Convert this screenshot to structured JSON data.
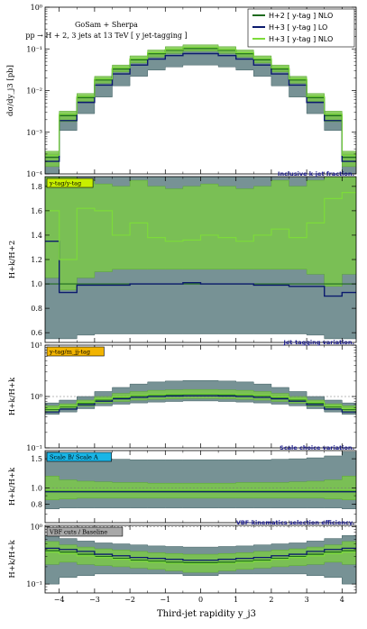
{
  "chart_data": {
    "type": "line",
    "header": [
      "GoSam + Sherpa",
      "pp → H + 2, 3 jets at 13 TeV  [ y jet-tagging ]"
    ],
    "xlabel": "Third-jet rapidity  y_j3",
    "xlim": [
      -4.4,
      4.4
    ],
    "xticks": [
      -4,
      -3,
      -2,
      -1,
      0,
      1,
      2,
      3,
      4
    ],
    "x_edges": [
      -4.4,
      -4.0,
      -3.5,
      -3.0,
      -2.5,
      -2.0,
      -1.5,
      -1.0,
      -0.5,
      0.0,
      0.5,
      1.0,
      1.5,
      2.0,
      2.5,
      3.0,
      3.5,
      4.0,
      4.4
    ],
    "legend": [
      "H+2 [ y-tag ] NLO",
      "H+3 [ y-tag ] LO",
      "H+3 [ y-tag ] NLO"
    ],
    "colors": {
      "dark_green": "#1e6b1e",
      "navy": "#0b1a6e",
      "light_green": "#7ddb3a",
      "band_gray": "#5f7f83",
      "band_green": "#7ac74a",
      "tag_yellow": "#c8f000",
      "tag_orange": "#f2b400",
      "tag_cyan": "#19b5e6",
      "tag_gray": "#a8a8a8"
    },
    "panels": [
      {
        "id": "main",
        "scale": "log",
        "ylim": [
          0.0001,
          1
        ],
        "ylabel": "dσ/dy_j3 [pb]",
        "yticks": [
          {
            "v": 0.0001,
            "l": "10⁻⁴"
          },
          {
            "v": 0.001,
            "l": "10⁻³"
          },
          {
            "v": 0.01,
            "l": "10⁻²"
          },
          {
            "v": 0.1,
            "l": "10⁻¹"
          },
          {
            "v": 1,
            "l": "10⁰"
          }
        ],
        "gray_lo": [
          0.0001,
          0.0011,
          0.0028,
          0.007,
          0.013,
          0.022,
          0.031,
          0.037,
          0.041,
          0.041,
          0.037,
          0.031,
          0.022,
          0.013,
          0.007,
          0.0028,
          0.0011,
          0.0001
        ],
        "gray_hi": [
          0.0003,
          0.0028,
          0.0075,
          0.02,
          0.036,
          0.058,
          0.08,
          0.095,
          0.105,
          0.105,
          0.095,
          0.08,
          0.058,
          0.036,
          0.02,
          0.0075,
          0.0028,
          0.0003
        ],
        "green_lo": [
          0.00015,
          0.0018,
          0.0055,
          0.015,
          0.028,
          0.046,
          0.064,
          0.078,
          0.088,
          0.088,
          0.078,
          0.064,
          0.046,
          0.028,
          0.015,
          0.0055,
          0.0018,
          0.00015
        ],
        "green_hi": [
          0.00035,
          0.0032,
          0.0085,
          0.022,
          0.041,
          0.068,
          0.094,
          0.113,
          0.125,
          0.125,
          0.113,
          0.094,
          0.068,
          0.041,
          0.022,
          0.0085,
          0.0032,
          0.00035
        ],
        "lines": [
          {
            "name": "H+2 NLO",
            "color": "#1e6b1e",
            "w": 1.4,
            "values": [
              0.00025,
              0.0025,
              0.0068,
              0.018,
              0.033,
              0.055,
              0.077,
              0.093,
              0.103,
              0.103,
              0.093,
              0.077,
              0.055,
              0.033,
              0.018,
              0.0068,
              0.0025,
              0.00025
            ]
          },
          {
            "name": "H+3 LO",
            "color": "#0b1a6e",
            "w": 1.4,
            "values": [
              0.0002,
              0.0019,
              0.0052,
              0.0135,
              0.025,
              0.041,
              0.057,
              0.069,
              0.077,
              0.077,
              0.069,
              0.057,
              0.041,
              0.025,
              0.0135,
              0.0052,
              0.0019,
              0.0002
            ]
          },
          {
            "name": "H+3 NLO",
            "color": "#7ddb3a",
            "w": 1.2,
            "values": [
              0.00028,
              0.0027,
              0.0072,
              0.019,
              0.035,
              0.058,
              0.081,
              0.097,
              0.108,
              0.108,
              0.097,
              0.081,
              0.058,
              0.035,
              0.019,
              0.0072,
              0.0027,
              0.00028
            ]
          }
        ]
      },
      {
        "id": "ratio1",
        "scale": "lin",
        "ylim": [
          0.52,
          1.88
        ],
        "ylabel": "H+k/H+2",
        "tag": "y-tag/y-tag",
        "title": "Inclusive k-jet fraction.",
        "yticks": [
          {
            "v": 0.6,
            "l": "0.6"
          },
          {
            "v": 0.8,
            "l": "0.8"
          },
          {
            "v": 1.0,
            "l": "1.0"
          },
          {
            "v": 1.2,
            "l": "1.2"
          },
          {
            "v": 1.4,
            "l": "1.4"
          },
          {
            "v": 1.6,
            "l": "1.6"
          },
          {
            "v": 1.8,
            "l": "1.8"
          }
        ],
        "gray_lo": [
          0.55,
          0.55,
          0.58,
          0.59,
          0.59,
          0.59,
          0.59,
          0.59,
          0.59,
          0.59,
          0.59,
          0.59,
          0.59,
          0.59,
          0.59,
          0.58,
          0.55,
          0.55
        ],
        "gray_hi": [
          1.88,
          1.88,
          1.88,
          1.88,
          1.88,
          1.88,
          1.88,
          1.88,
          1.88,
          1.88,
          1.88,
          1.88,
          1.88,
          1.88,
          1.88,
          1.88,
          1.88,
          1.88
        ],
        "green_lo": [
          1.05,
          0.95,
          1.05,
          1.1,
          1.12,
          1.12,
          1.12,
          1.12,
          1.12,
          1.12,
          1.12,
          1.12,
          1.12,
          1.12,
          1.12,
          1.08,
          0.98,
          1.08
        ],
        "green_hi": [
          1.88,
          1.88,
          1.85,
          1.82,
          1.8,
          1.85,
          1.8,
          1.78,
          1.8,
          1.82,
          1.8,
          1.78,
          1.8,
          1.85,
          1.8,
          1.85,
          1.88,
          1.88
        ],
        "lines": [
          {
            "name": "H+2 NLO",
            "color": "#1e6b1e",
            "w": 1.2,
            "values": [
              1,
              1,
              1,
              1,
              1,
              1,
              1,
              1,
              1,
              1,
              1,
              1,
              1,
              1,
              1,
              1,
              1,
              1
            ]
          },
          {
            "name": "H+3 LO",
            "color": "#0b1a6e",
            "w": 1.4,
            "values": [
              1.35,
              0.93,
              0.99,
              0.99,
              0.99,
              1.0,
              1.0,
              1.0,
              1.01,
              1.0,
              1.0,
              1.0,
              0.99,
              0.99,
              0.98,
              0.98,
              0.9,
              0.93
            ]
          },
          {
            "name": "H+3 NLO",
            "color": "#7ddb3a",
            "w": 1.2,
            "values": [
              1.6,
              1.2,
              1.62,
              1.6,
              1.4,
              1.5,
              1.38,
              1.35,
              1.36,
              1.4,
              1.38,
              1.35,
              1.4,
              1.45,
              1.38,
              1.5,
              1.7,
              1.75
            ]
          }
        ]
      },
      {
        "id": "ratio2",
        "scale": "log",
        "ylim": [
          0.1,
          10
        ],
        "ylabel": "H+k/H+k",
        "tag": "y-tag/m_jj-tag",
        "title": "Jet-tagging variation.",
        "yticks": [
          {
            "v": 0.1,
            "l": "10⁻¹"
          },
          {
            "v": 1,
            "l": "10⁰"
          },
          {
            "v": 10,
            "l": "10¹"
          }
        ],
        "gray_lo": [
          0.45,
          0.5,
          0.58,
          0.66,
          0.71,
          0.75,
          0.78,
          0.8,
          0.82,
          0.82,
          0.8,
          0.78,
          0.75,
          0.71,
          0.66,
          0.58,
          0.5,
          0.45
        ],
        "gray_hi": [
          0.75,
          0.85,
          1.0,
          1.25,
          1.5,
          1.75,
          1.92,
          2.0,
          2.05,
          2.05,
          2.0,
          1.92,
          1.75,
          1.5,
          1.25,
          1.0,
          0.85,
          0.75
        ],
        "green_lo": [
          0.5,
          0.56,
          0.65,
          0.74,
          0.8,
          0.85,
          0.88,
          0.9,
          0.91,
          0.91,
          0.9,
          0.88,
          0.85,
          0.8,
          0.74,
          0.65,
          0.56,
          0.5
        ],
        "green_hi": [
          0.66,
          0.72,
          0.85,
          1.0,
          1.15,
          1.25,
          1.32,
          1.35,
          1.37,
          1.37,
          1.35,
          1.32,
          1.25,
          1.15,
          1.0,
          0.85,
          0.72,
          0.66
        ],
        "lines": [
          {
            "name": "H+2 NLO",
            "color": "#1e6b1e",
            "w": 1.3,
            "values": [
              0.56,
              0.63,
              0.74,
              0.86,
              0.95,
              1.02,
              1.06,
              1.08,
              1.1,
              1.1,
              1.08,
              1.06,
              1.02,
              0.95,
              0.86,
              0.74,
              0.63,
              0.56
            ]
          },
          {
            "name": "H+3 LO",
            "color": "#0b1a6e",
            "w": 1.3,
            "values": [
              0.5,
              0.57,
              0.69,
              0.81,
              0.9,
              0.96,
              1.0,
              1.02,
              1.03,
              1.03,
              1.02,
              1.0,
              0.96,
              0.9,
              0.81,
              0.69,
              0.57,
              0.5
            ]
          },
          {
            "name": "H+3 NLO",
            "color": "#7ddb3a",
            "w": 1.2,
            "values": [
              0.58,
              0.65,
              0.77,
              0.89,
              0.98,
              1.05,
              1.09,
              1.12,
              1.13,
              1.13,
              1.12,
              1.09,
              1.05,
              0.98,
              0.89,
              0.77,
              0.65,
              0.58
            ]
          }
        ]
      },
      {
        "id": "ratio3",
        "scale": "log",
        "ylim": [
          0.62,
          1.68
        ],
        "ylabel": "H+k/H+k",
        "tag": "Scale B/ Scale A",
        "title": "Scale choice variation.",
        "yticks": [
          {
            "v": 0.8,
            "l": "0.8"
          },
          {
            "v": 1.0,
            "l": "1.0"
          },
          {
            "v": 1.5,
            "l": "1.5"
          }
        ],
        "gray_lo": [
          0.75,
          0.76,
          0.76,
          0.76,
          0.76,
          0.76,
          0.76,
          0.76,
          0.76,
          0.76,
          0.76,
          0.76,
          0.76,
          0.76,
          0.76,
          0.76,
          0.76,
          0.75
        ],
        "gray_hi": [
          1.65,
          1.56,
          1.52,
          1.5,
          1.49,
          1.48,
          1.48,
          1.48,
          1.48,
          1.48,
          1.48,
          1.48,
          1.48,
          1.49,
          1.5,
          1.52,
          1.56,
          1.65
        ],
        "green_lo": [
          0.85,
          0.86,
          0.87,
          0.87,
          0.87,
          0.87,
          0.87,
          0.87,
          0.87,
          0.87,
          0.87,
          0.87,
          0.87,
          0.87,
          0.87,
          0.87,
          0.86,
          0.85
        ],
        "green_hi": [
          1.18,
          1.12,
          1.1,
          1.09,
          1.08,
          1.08,
          1.07,
          1.07,
          1.07,
          1.07,
          1.07,
          1.08,
          1.08,
          1.08,
          1.09,
          1.1,
          1.12,
          1.18
        ],
        "lines": [
          {
            "name": "H+2 NLO",
            "color": "#1e6b1e",
            "w": 1.3,
            "values": [
              0.96,
              0.96,
              0.96,
              0.96,
              0.96,
              0.96,
              0.96,
              0.96,
              0.96,
              0.96,
              0.96,
              0.96,
              0.96,
              0.96,
              0.96,
              0.96,
              0.96,
              0.96
            ]
          },
          {
            "name": "H+3 LO",
            "color": "#0b1a6e",
            "w": 1.3,
            "values": [
              0.95,
              0.95,
              0.95,
              0.95,
              0.95,
              0.95,
              0.95,
              0.95,
              0.95,
              0.95,
              0.95,
              0.95,
              0.95,
              0.95,
              0.95,
              0.95,
              0.95,
              0.95
            ]
          },
          {
            "name": "H+3 NLO",
            "color": "#7ddb3a",
            "w": 1.2,
            "values": [
              0.97,
              0.97,
              0.97,
              0.97,
              0.97,
              0.97,
              0.97,
              0.97,
              0.97,
              0.97,
              0.97,
              0.97,
              0.97,
              0.97,
              0.97,
              0.97,
              0.97,
              0.97
            ]
          }
        ]
      },
      {
        "id": "ratio4",
        "scale": "log",
        "ylim": [
          0.07,
          1.05
        ],
        "ylabel": "H+k/H+k",
        "tag": "VBF cuts / Baseline",
        "title": "VBF-kinematics selection efficiency.",
        "yticks": [
          {
            "v": 0.1,
            "l": "10⁻¹"
          },
          {
            "v": 1,
            "l": "10⁰"
          }
        ],
        "gray_lo": [
          0.1,
          0.13,
          0.14,
          0.15,
          0.15,
          0.15,
          0.15,
          0.15,
          0.14,
          0.14,
          0.15,
          0.15,
          0.15,
          0.15,
          0.15,
          0.14,
          0.13,
          0.1
        ],
        "gray_hi": [
          0.7,
          0.62,
          0.56,
          0.52,
          0.5,
          0.48,
          0.46,
          0.45,
          0.44,
          0.44,
          0.45,
          0.46,
          0.48,
          0.5,
          0.52,
          0.56,
          0.62,
          0.7
        ],
        "green_lo": [
          0.22,
          0.24,
          0.22,
          0.21,
          0.2,
          0.19,
          0.18,
          0.17,
          0.16,
          0.16,
          0.17,
          0.18,
          0.19,
          0.2,
          0.21,
          0.22,
          0.24,
          0.22
        ],
        "green_hi": [
          0.55,
          0.48,
          0.44,
          0.41,
          0.39,
          0.37,
          0.35,
          0.34,
          0.33,
          0.33,
          0.34,
          0.35,
          0.37,
          0.39,
          0.41,
          0.44,
          0.48,
          0.55
        ],
        "lines": [
          {
            "name": "H+2 NLO",
            "color": "#1e6b1e",
            "w": 1.3,
            "values": [
              0.38,
              0.36,
              0.33,
              0.3,
              0.28,
              0.26,
              0.25,
              0.24,
              0.235,
              0.235,
              0.24,
              0.25,
              0.26,
              0.28,
              0.3,
              0.33,
              0.36,
              0.38
            ]
          },
          {
            "name": "H+3 LO",
            "color": "#0b1a6e",
            "w": 1.3,
            "values": [
              0.42,
              0.4,
              0.37,
              0.33,
              0.31,
              0.29,
              0.28,
              0.27,
              0.26,
              0.26,
              0.27,
              0.28,
              0.29,
              0.31,
              0.33,
              0.37,
              0.4,
              0.42
            ]
          },
          {
            "name": "H+3 NLO",
            "color": "#7ddb3a",
            "w": 1.2,
            "values": [
              0.36,
              0.34,
              0.31,
              0.29,
              0.27,
              0.25,
              0.24,
              0.23,
              0.225,
              0.225,
              0.23,
              0.24,
              0.25,
              0.27,
              0.29,
              0.31,
              0.34,
              0.36
            ]
          }
        ]
      }
    ]
  }
}
